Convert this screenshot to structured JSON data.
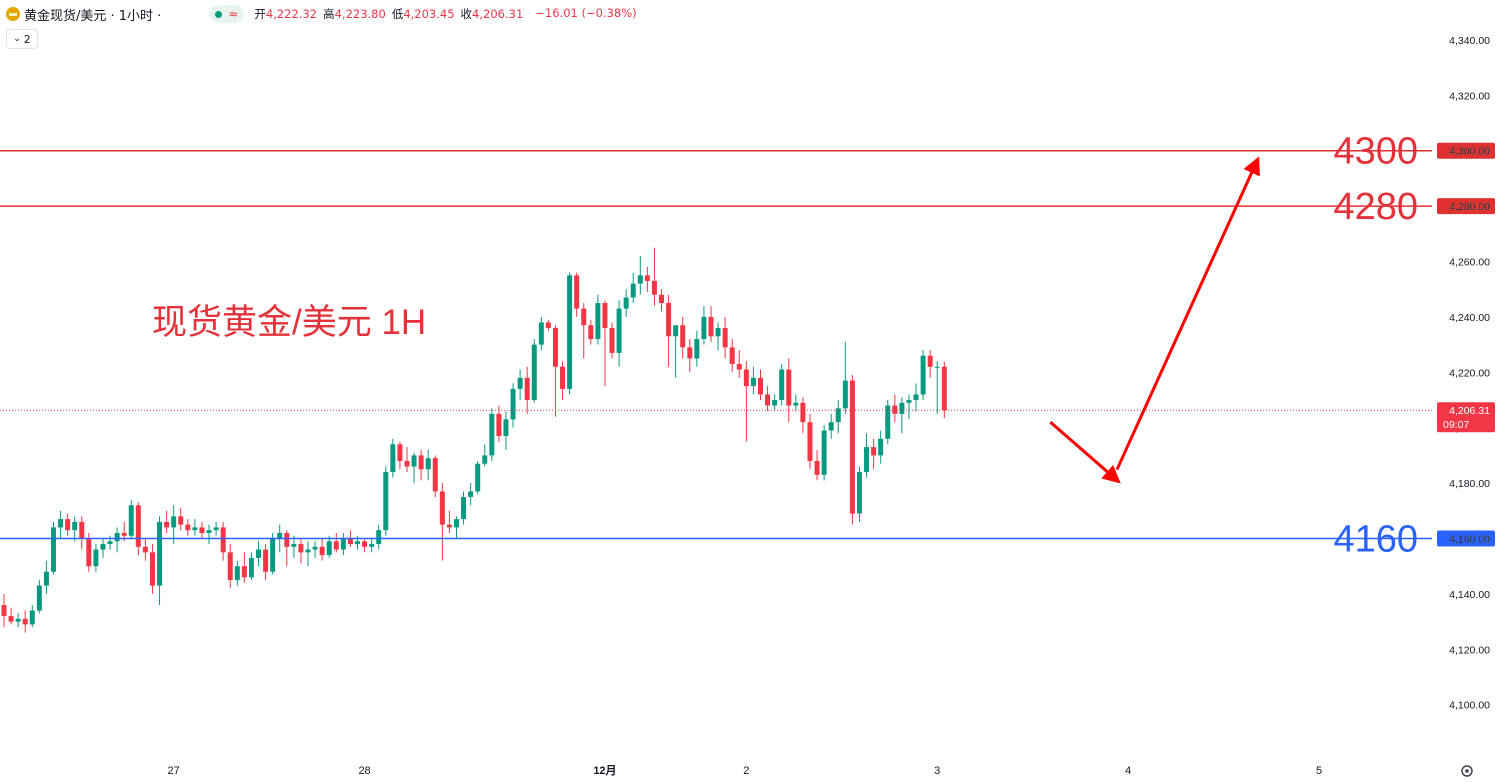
{
  "header": {
    "symbol_title": "黄金现货/美元 · 1小时 ·",
    "open_label": "开",
    "open_value": "4,222.32",
    "high_label": "高",
    "high_value": "4,223.80",
    "low_label": "低",
    "low_value": "4,203.45",
    "close_label": "收",
    "close_value": "4,206.31",
    "change": "−16.01 (−0.38%)",
    "indicator_count": "2",
    "wave_symbol": "≈"
  },
  "annotation_text": "现货黄金/美元 1H",
  "colors": {
    "up": "#089981",
    "down": "#f23645",
    "resistance": "#e03131",
    "support": "#2962ff",
    "arrow": "#ff0000"
  },
  "chart_data": {
    "type": "candlestick",
    "title": "",
    "y_axis": {
      "ylim": [
        4090,
        4350
      ],
      "ticks": [
        {
          "value": 4340,
          "label": "4,340.00"
        },
        {
          "value": 4320,
          "label": "4,320.00"
        },
        {
          "value": 4300,
          "label": "4,300.00"
        },
        {
          "value": 4280,
          "label": "4,280.00"
        },
        {
          "value": 4260,
          "label": "4,260.00"
        },
        {
          "value": 4240,
          "label": "4,240.00"
        },
        {
          "value": 4220,
          "label": "4,220.00"
        },
        {
          "value": 4200,
          "label": "4,200.00"
        },
        {
          "value": 4180,
          "label": "4,180.00"
        },
        {
          "value": 4160,
          "label": "4,160.00"
        },
        {
          "value": 4140,
          "label": "4,140.00"
        },
        {
          "value": 4120,
          "label": "4,120.00"
        },
        {
          "value": 4100,
          "label": "4,100.00"
        }
      ]
    },
    "x_axis": {
      "labels": [
        {
          "label": "27",
          "bar": 24,
          "bold": false
        },
        {
          "label": "28",
          "bar": 51,
          "bold": false
        },
        {
          "label": "12月",
          "bar": 85,
          "bold": true
        },
        {
          "label": "2",
          "bar": 105,
          "bold": false
        },
        {
          "label": "3",
          "bar": 132,
          "bold": false
        },
        {
          "label": "4",
          "bar": 159,
          "bold": false
        },
        {
          "label": "5",
          "bar": 186,
          "bold": false
        }
      ]
    },
    "horizontal_levels": [
      {
        "value": 4300,
        "label": "4300",
        "axis_label": "4,300.00",
        "kind": "resistance"
      },
      {
        "value": 4280,
        "label": "4280",
        "axis_label": "4,280.00",
        "kind": "resistance"
      },
      {
        "value": 4160,
        "label": "4160",
        "axis_label": "4,160.00",
        "kind": "support"
      }
    ],
    "last_price": {
      "value": 4206.31,
      "label": "4,206.31",
      "countdown": "09:07"
    },
    "projection": [
      {
        "bar": 148,
        "price": 4202
      },
      {
        "bar": 157,
        "price": 4182
      },
      {
        "bar": 177,
        "price": 4295
      }
    ],
    "candles": [
      [
        4136,
        4140,
        4128,
        4132
      ],
      [
        4132,
        4135,
        4129,
        4130
      ],
      [
        4130,
        4133,
        4128,
        4131
      ],
      [
        4131,
        4134,
        4126,
        4129
      ],
      [
        4129,
        4136,
        4128,
        4134
      ],
      [
        4134,
        4145,
        4133,
        4143
      ],
      [
        4143,
        4152,
        4140,
        4148
      ],
      [
        4148,
        4166,
        4147,
        4164
      ],
      [
        4164,
        4170,
        4160,
        4167
      ],
      [
        4167,
        4169,
        4161,
        4163
      ],
      [
        4163,
        4168,
        4159,
        4166
      ],
      [
        4166,
        4168,
        4156,
        4160
      ],
      [
        4160,
        4162,
        4148,
        4150
      ],
      [
        4150,
        4158,
        4148,
        4156
      ],
      [
        4156,
        4160,
        4153,
        4158
      ],
      [
        4158,
        4161,
        4156,
        4159
      ],
      [
        4159,
        4164,
        4155,
        4162
      ],
      [
        4162,
        4166,
        4159,
        4161
      ],
      [
        4161,
        4174,
        4160,
        4172
      ],
      [
        4172,
        4173,
        4154,
        4157
      ],
      [
        4157,
        4160,
        4152,
        4155
      ],
      [
        4155,
        4158,
        4140,
        4143
      ],
      [
        4143,
        4168,
        4136,
        4166
      ],
      [
        4166,
        4170,
        4162,
        4164
      ],
      [
        4164,
        4172,
        4158,
        4168
      ],
      [
        4168,
        4171,
        4163,
        4165
      ],
      [
        4165,
        4167,
        4161,
        4163
      ],
      [
        4163,
        4167,
        4161,
        4164
      ],
      [
        4164,
        4166,
        4160,
        4162
      ],
      [
        4162,
        4165,
        4158,
        4163
      ],
      [
        4163,
        4166,
        4161,
        4164
      ],
      [
        4164,
        4166,
        4152,
        4155
      ],
      [
        4155,
        4158,
        4142,
        4145
      ],
      [
        4145,
        4152,
        4143,
        4150
      ],
      [
        4150,
        4155,
        4144,
        4146
      ],
      [
        4146,
        4155,
        4145,
        4153
      ],
      [
        4153,
        4159,
        4150,
        4156
      ],
      [
        4156,
        4158,
        4145,
        4148
      ],
      [
        4148,
        4162,
        4147,
        4160
      ],
      [
        4160,
        4165,
        4155,
        4162
      ],
      [
        4162,
        4163,
        4150,
        4157
      ],
      [
        4157,
        4161,
        4153,
        4158
      ],
      [
        4158,
        4160,
        4151,
        4155
      ],
      [
        4155,
        4159,
        4150,
        4156
      ],
      [
        4156,
        4159,
        4153,
        4157
      ],
      [
        4157,
        4160,
        4152,
        4154
      ],
      [
        4154,
        4161,
        4153,
        4159
      ],
      [
        4159,
        4162,
        4155,
        4156
      ],
      [
        4156,
        4162,
        4154,
        4160
      ],
      [
        4160,
        4163,
        4157,
        4158
      ],
      [
        4158,
        4161,
        4156,
        4159
      ],
      [
        4159,
        4160,
        4155,
        4157
      ],
      [
        4157,
        4160,
        4155,
        4158
      ],
      [
        4158,
        4165,
        4156,
        4163
      ],
      [
        4163,
        4186,
        4161,
        4184
      ],
      [
        4184,
        4196,
        4182,
        4194
      ],
      [
        4194,
        4195,
        4185,
        4188
      ],
      [
        4188,
        4193,
        4184,
        4186
      ],
      [
        4186,
        4191,
        4180,
        4190
      ],
      [
        4190,
        4192,
        4181,
        4185
      ],
      [
        4185,
        4192,
        4181,
        4189
      ],
      [
        4189,
        4190,
        4175,
        4177
      ],
      [
        4177,
        4180,
        4152,
        4165
      ],
      [
        4165,
        4170,
        4162,
        4164
      ],
      [
        4164,
        4168,
        4160,
        4167
      ],
      [
        4167,
        4177,
        4165,
        4175
      ],
      [
        4175,
        4180,
        4172,
        4177
      ],
      [
        4177,
        4188,
        4176,
        4187
      ],
      [
        4187,
        4194,
        4186,
        4190
      ],
      [
        4190,
        4207,
        4188,
        4205
      ],
      [
        4205,
        4208,
        4195,
        4197
      ],
      [
        4197,
        4206,
        4192,
        4203
      ],
      [
        4203,
        4216,
        4200,
        4214
      ],
      [
        4214,
        4221,
        4210,
        4218
      ],
      [
        4218,
        4222,
        4205,
        4210
      ],
      [
        4210,
        4232,
        4209,
        4230
      ],
      [
        4230,
        4240,
        4228,
        4238
      ],
      [
        4238,
        4239,
        4235,
        4236
      ],
      [
        4236,
        4237,
        4204,
        4222
      ],
      [
        4222,
        4224,
        4210,
        4214
      ],
      [
        4214,
        4256,
        4212,
        4255
      ],
      [
        4255,
        4256,
        4240,
        4243
      ],
      [
        4243,
        4245,
        4225,
        4237
      ],
      [
        4237,
        4239,
        4230,
        4232
      ],
      [
        4232,
        4248,
        4230,
        4245
      ],
      [
        4245,
        4246,
        4215,
        4236
      ],
      [
        4236,
        4238,
        4225,
        4227
      ],
      [
        4227,
        4246,
        4222,
        4243
      ],
      [
        4243,
        4250,
        4240,
        4247
      ],
      [
        4247,
        4256,
        4245,
        4252
      ],
      [
        4252,
        4262,
        4248,
        4255
      ],
      [
        4255,
        4258,
        4249,
        4253
      ],
      [
        4253,
        4265,
        4244,
        4248
      ],
      [
        4248,
        4250,
        4242,
        4245
      ],
      [
        4245,
        4248,
        4222,
        4233
      ],
      [
        4233,
        4236,
        4218,
        4237
      ],
      [
        4237,
        4240,
        4225,
        4229
      ],
      [
        4229,
        4232,
        4220,
        4225
      ],
      [
        4225,
        4235,
        4222,
        4232
      ],
      [
        4232,
        4244,
        4230,
        4240
      ],
      [
        4240,
        4244,
        4231,
        4233
      ],
      [
        4233,
        4238,
        4228,
        4236
      ],
      [
        4236,
        4240,
        4225,
        4229
      ],
      [
        4229,
        4232,
        4220,
        4223
      ],
      [
        4223,
        4228,
        4218,
        4221
      ],
      [
        4221,
        4224,
        4195,
        4215
      ],
      [
        4215,
        4222,
        4212,
        4218
      ],
      [
        4218,
        4221,
        4210,
        4212
      ],
      [
        4212,
        4215,
        4206,
        4208
      ],
      [
        4208,
        4212,
        4206,
        4210
      ],
      [
        4210,
        4223,
        4208,
        4221
      ],
      [
        4221,
        4225,
        4202,
        4208
      ],
      [
        4208,
        4212,
        4206,
        4209
      ],
      [
        4209,
        4211,
        4198,
        4202
      ],
      [
        4202,
        4205,
        4185,
        4188
      ],
      [
        4188,
        4192,
        4181,
        4183
      ],
      [
        4183,
        4201,
        4181,
        4199
      ],
      [
        4199,
        4205,
        4196,
        4202
      ],
      [
        4202,
        4210,
        4198,
        4207
      ],
      [
        4207,
        4231,
        4205,
        4217
      ],
      [
        4217,
        4219,
        4165,
        4169
      ],
      [
        4169,
        4186,
        4166,
        4184
      ],
      [
        4184,
        4198,
        4182,
        4193
      ],
      [
        4193,
        4196,
        4185,
        4190
      ],
      [
        4190,
        4199,
        4187,
        4196
      ],
      [
        4196,
        4210,
        4194,
        4208
      ],
      [
        4208,
        4212,
        4202,
        4205
      ],
      [
        4205,
        4211,
        4198,
        4209
      ],
      [
        4209,
        4212,
        4203,
        4210
      ],
      [
        4210,
        4216,
        4206,
        4212
      ],
      [
        4212,
        4228,
        4210,
        4226
      ],
      [
        4226,
        4228,
        4218,
        4222
      ],
      [
        4222,
        4224,
        4205,
        4222
      ],
      [
        4222,
        4223.8,
        4203.45,
        4206.31
      ]
    ]
  },
  "footer": {
    "settings_icon": "gear-icon"
  }
}
